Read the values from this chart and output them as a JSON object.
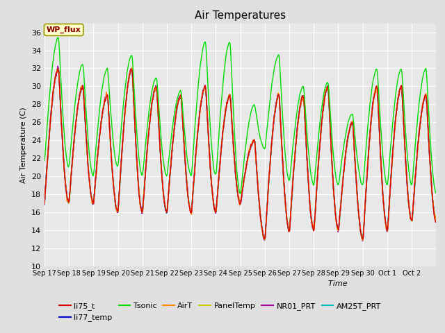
{
  "title": "Air Temperatures",
  "xlabel": "Time",
  "ylabel": "Air Temperature (C)",
  "ylim": [
    10,
    37
  ],
  "yticks": [
    10,
    12,
    14,
    16,
    18,
    20,
    22,
    24,
    26,
    28,
    30,
    32,
    34,
    36
  ],
  "bg_color": "#e0e0e0",
  "plot_bg_color": "#e8e8e8",
  "grid_color": "#ffffff",
  "series_colors": {
    "li75_t": "#dd0000",
    "li77_temp": "#0000cc",
    "Tsonic": "#00dd00",
    "AirT": "#ff8800",
    "PanelTemp": "#cccc00",
    "NR01_PRT": "#aa00aa",
    "AM25T_PRT": "#00bbbb"
  },
  "annotation_text": "WP_flux",
  "annotation_color": "#880000",
  "annotation_bg": "#ffffcc",
  "annotation_border": "#999900",
  "n_days": 16,
  "x_tick_labels": [
    "Sep 17",
    "Sep 18",
    "Sep 19",
    "Sep 20",
    "Sep 21",
    "Sep 22",
    "Sep 23",
    "Sep 24",
    "Sep 25",
    "Sep 26",
    "Sep 27",
    "Sep 28",
    "Sep 29",
    "Sep 30",
    "Oct 1",
    "Oct 2"
  ],
  "linewidth": 1.0,
  "figsize": [
    6.4,
    4.8
  ],
  "dpi": 100
}
